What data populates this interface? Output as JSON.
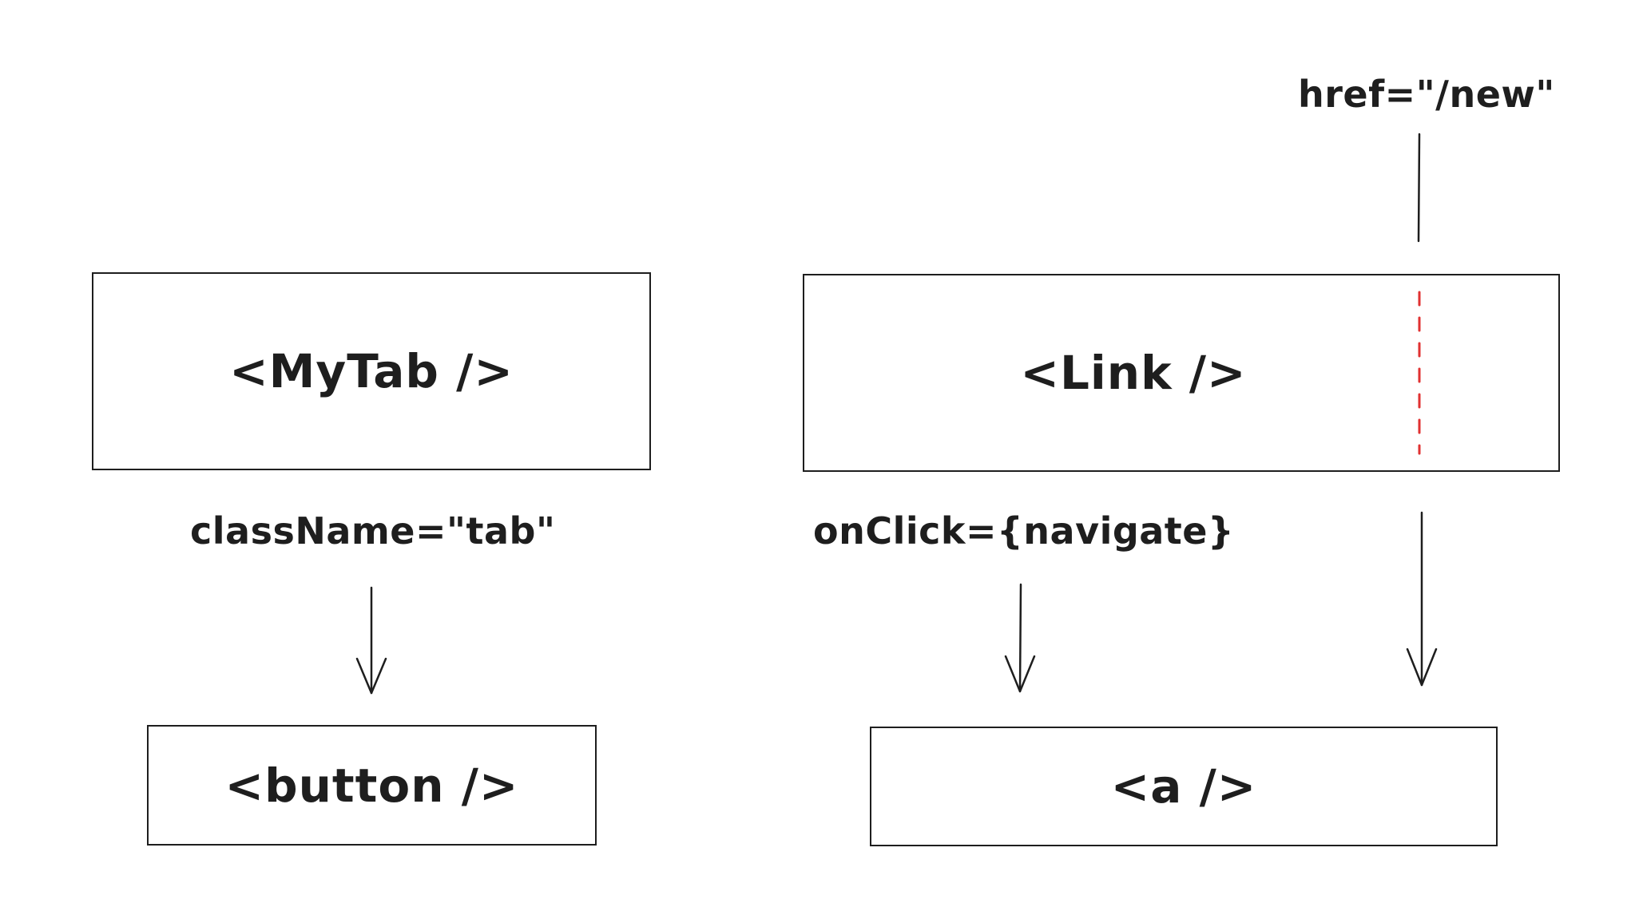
{
  "nodes": {
    "mytab": {
      "label": "<MyTab />"
    },
    "link": {
      "label": "<Link />"
    },
    "button": {
      "label": "<button />"
    },
    "anchor": {
      "label": "<a />"
    }
  },
  "edges": {
    "classname": {
      "label": "className=\"tab\""
    },
    "onclick": {
      "label": "onClick={navigate}"
    },
    "href": {
      "label": "href=\"/new\""
    }
  },
  "colors": {
    "stroke": "#1e1e1e",
    "dashed_divider": "#e03131",
    "background": "#ffffff"
  }
}
